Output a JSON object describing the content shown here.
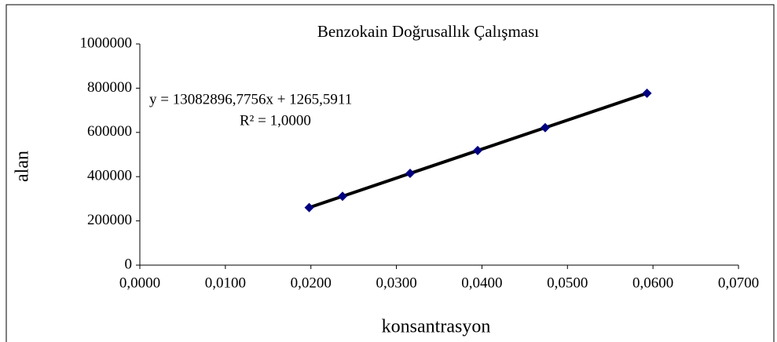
{
  "chart_data": {
    "type": "scatter",
    "title": "Benzokain Doğrusallık  Çalışması",
    "x_label": "konsantrasyon",
    "y_label": "alan",
    "annotations": [
      "y = 13082896,7756x + 1265,5911",
      "R² = 1,0000"
    ],
    "series": [
      {
        "color": "#000080",
        "line_color": "#000000",
        "x": [
          0.0198,
          0.0237,
          0.0316,
          0.0395,
          0.0474,
          0.0593
        ],
        "values": [
          260300,
          311300,
          414700,
          518000,
          621400,
          777100
        ]
      }
    ],
    "xlim": [
      0,
      0.07
    ],
    "xticks": [
      {
        "value": 0,
        "label": "0,0000"
      },
      {
        "value": 0.01,
        "label": "0,0100"
      },
      {
        "value": 0.02,
        "label": "0,0200"
      },
      {
        "value": 0.03,
        "label": "0,0300"
      },
      {
        "value": 0.04,
        "label": "0,0400"
      },
      {
        "value": 0.05,
        "label": "0,0500"
      },
      {
        "value": 0.06,
        "label": "0,0600"
      },
      {
        "value": 0.07,
        "label": "0,0700"
      }
    ],
    "ylim": [
      0,
      1000000
    ],
    "yticks": [
      0,
      200000,
      400000,
      600000,
      800000,
      1000000
    ]
  }
}
